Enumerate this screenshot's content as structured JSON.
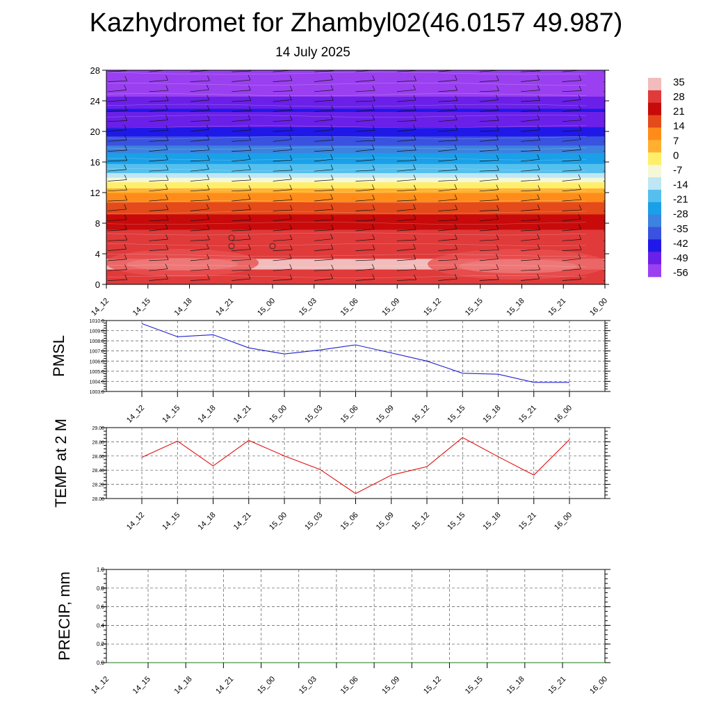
{
  "header": {
    "title": "Kazhydromet for Zhambyl02(46.0157 49.987)",
    "subtitle": "14 July 2025"
  },
  "colors": {
    "pmsl_line": "#1f1fd0",
    "temp_line": "#e01010",
    "precip_line": "#1a7a1a"
  },
  "chart_data": [
    {
      "type": "heatmap",
      "name": "temperature-cross-section",
      "title": "",
      "xlabel": "",
      "ylabel": "",
      "ylim": [
        0,
        28
      ],
      "y_ticks": [
        "0",
        "4",
        "8",
        "12",
        "16",
        "20",
        "24",
        "28"
      ],
      "categories": [
        "14_12",
        "14_15",
        "14_18",
        "14_21",
        "15_00",
        "15_03",
        "15_06",
        "15_09",
        "15_12",
        "15_15",
        "15_18",
        "15_21",
        "16_00"
      ],
      "colorbar": {
        "labels": [
          "35",
          "28",
          "21",
          "14",
          "7",
          "0",
          "-7",
          "-14",
          "-21",
          "-28",
          "-35",
          "-42",
          "-49",
          "-56"
        ],
        "colors": [
          "#f2bcbc",
          "#e03a3a",
          "#c80a0a",
          "#e44a1a",
          "#ff8c1a",
          "#ffb030",
          "#ffee6a",
          "#f4f8d8",
          "#bfe6f4",
          "#55c0ee",
          "#1aa0e8",
          "#3c82e0",
          "#3a52e0",
          "#2018e8",
          "#6a20e8",
          "#9a40f0"
        ]
      },
      "note_rows": [
        {
          "y": 0,
          "t": 31
        },
        {
          "y": 3,
          "t": 32
        },
        {
          "y": 5,
          "t": 30
        },
        {
          "y": 7,
          "t": 26
        },
        {
          "y": 9,
          "t": 20
        },
        {
          "y": 10.5,
          "t": 14
        },
        {
          "y": 12,
          "t": 6
        },
        {
          "y": 13.5,
          "t": -8
        },
        {
          "y": 15,
          "t": -22
        },
        {
          "y": 17,
          "t": -30
        },
        {
          "y": 19,
          "t": -42
        },
        {
          "y": 21,
          "t": -52
        },
        {
          "y": 23,
          "t": -50
        },
        {
          "y": 25,
          "t": -58
        },
        {
          "y": 28,
          "t": -62
        }
      ]
    },
    {
      "type": "line",
      "name": "pmsl",
      "ylabel": "PMSL",
      "ylim": [
        1003.0,
        1010.0
      ],
      "y_ticks": [
        "1003.0",
        "1004.0",
        "1005.0",
        "1006.0",
        "1007.0",
        "1008.0",
        "1009.0",
        "1010.0"
      ],
      "categories": [
        "14_12",
        "14_15",
        "14_18",
        "14_21",
        "15_00",
        "15_03",
        "15_06",
        "15_09",
        "15_12",
        "15_15",
        "15_18",
        "15_21",
        "16_00"
      ],
      "values": [
        1009.7,
        1008.4,
        1008.6,
        1007.3,
        1006.7,
        1007.1,
        1007.6,
        1006.8,
        1006.0,
        1004.8,
        1004.7,
        1003.9,
        1003.9
      ]
    },
    {
      "type": "line",
      "name": "temp-2m",
      "ylabel": "TEMP at 2 M",
      "ylim": [
        28.0,
        29.0
      ],
      "y_ticks": [
        "28.00",
        "28.20",
        "28.40",
        "28.60",
        "28.80",
        "29.00"
      ],
      "categories": [
        "14_12",
        "14_15",
        "14_18",
        "14_21",
        "15_00",
        "15_03",
        "15_06",
        "15_09",
        "15_12",
        "15_15",
        "15_18",
        "15_21",
        "16_00"
      ],
      "values": [
        28.58,
        28.81,
        28.46,
        28.82,
        28.6,
        28.41,
        28.07,
        28.33,
        28.45,
        28.86,
        28.59,
        28.33,
        28.83
      ]
    },
    {
      "type": "line",
      "name": "precip",
      "ylabel": "PRECIP, mm",
      "ylim": [
        0.0,
        1.0
      ],
      "y_ticks": [
        "0.0",
        "0.2",
        "0.4",
        "0.6",
        "0.8",
        "1.0"
      ],
      "categories": [
        "14_12",
        "14_15",
        "14_18",
        "14_21",
        "15_00",
        "15_03",
        "15_06",
        "15_09",
        "15_12",
        "15_15",
        "15_18",
        "15_21",
        "16_00"
      ],
      "values": [
        0,
        0,
        0,
        0,
        0,
        0,
        0,
        0,
        0,
        0,
        0,
        0,
        0
      ]
    }
  ]
}
